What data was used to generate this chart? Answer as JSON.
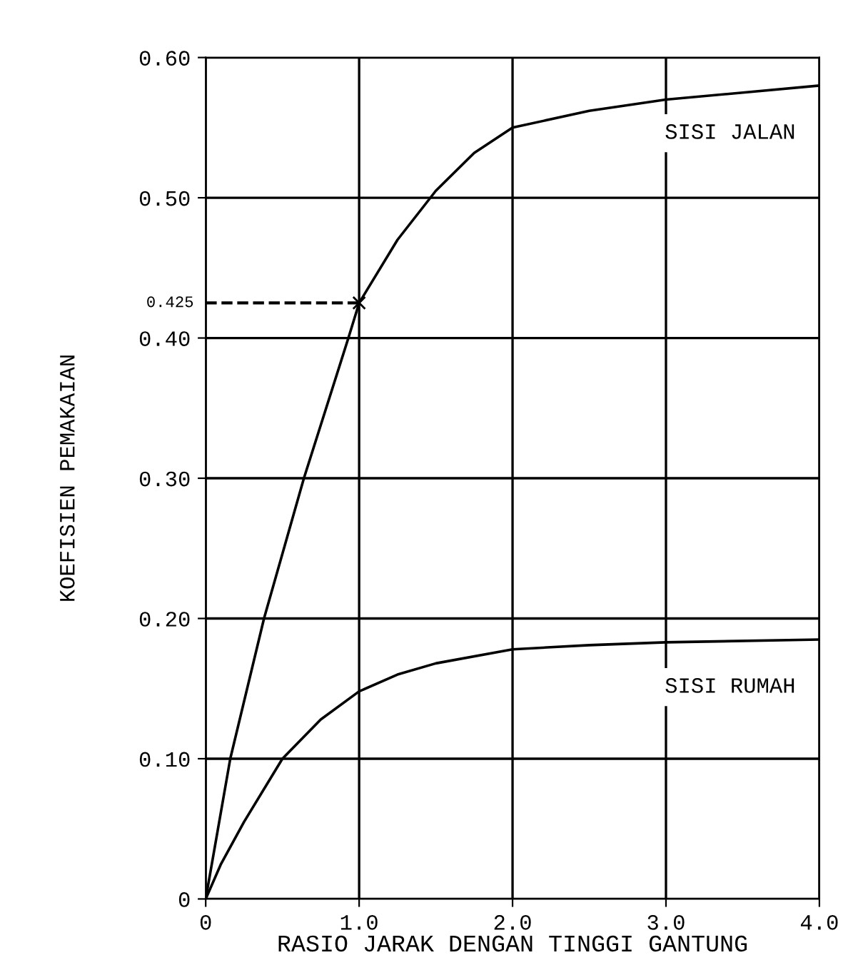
{
  "chart_data": {
    "type": "line",
    "xlabel": "RASIO JARAK DENGAN TINGGI GANTUNG",
    "ylabel": "KOEFISIEN PEMAKAIAN",
    "series": [
      {
        "name": "SISI JALAN",
        "color": "#000000",
        "x": [
          0,
          0.16,
          0.38,
          0.64,
          0.93,
          1.0,
          1.25,
          1.5,
          1.75,
          2.0,
          2.5,
          3.0,
          3.5,
          4.0
        ],
        "values": [
          0,
          0.1,
          0.2,
          0.3,
          0.4,
          0.425,
          0.47,
          0.505,
          0.532,
          0.55,
          0.562,
          0.57,
          0.575,
          0.58
        ]
      },
      {
        "name": "SISI RUMAH",
        "color": "#000000",
        "x": [
          0,
          0.1,
          0.25,
          0.5,
          0.75,
          1.0,
          1.25,
          1.5,
          2.0,
          2.5,
          3.0,
          4.0
        ],
        "values": [
          0,
          0.025,
          0.055,
          0.1,
          0.128,
          0.148,
          0.16,
          0.168,
          0.178,
          0.181,
          0.183,
          0.185
        ]
      }
    ],
    "xlim": [
      0,
      4
    ],
    "ylim": [
      0,
      0.6
    ],
    "xticks": [
      0,
      {
        "value": 1,
        "label": "1.0"
      },
      {
        "value": 2,
        "label": "2.0"
      },
      {
        "value": 3,
        "label": "3.0"
      },
      {
        "value": 4,
        "label": "4.0"
      }
    ],
    "yticks": [
      0,
      {
        "value": 0.1,
        "label": "0.10"
      },
      {
        "value": 0.2,
        "label": "0.20"
      },
      {
        "value": 0.3,
        "label": "0.30"
      },
      {
        "value": 0.4,
        "label": "0.40"
      },
      {
        "value": 0.5,
        "label": "0.50"
      },
      {
        "value": 0.6,
        "label": "0.60"
      }
    ],
    "ref_lines": [
      {
        "axis": "y",
        "value": 0.425,
        "label": "0.425",
        "line_style": "dashed",
        "color": "#000000"
      }
    ],
    "grid": true,
    "legend": false,
    "marker": "none",
    "line_style": "solid"
  }
}
